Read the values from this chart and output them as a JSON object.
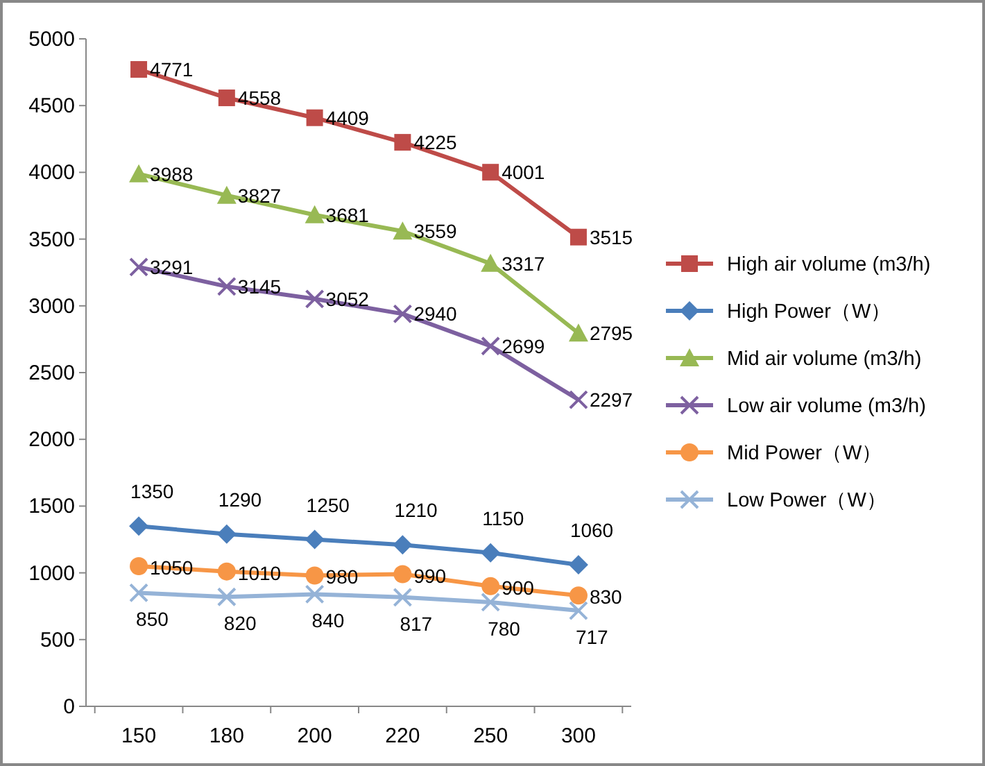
{
  "chart_data": {
    "type": "line",
    "categories": [
      "150",
      "180",
      "200",
      "220",
      "250",
      "300"
    ],
    "ylim": [
      0,
      5000
    ],
    "yticks": [
      0,
      500,
      1000,
      1500,
      2000,
      2500,
      3000,
      3500,
      4000,
      4500,
      5000
    ],
    "data_labels": true,
    "legend": "right",
    "grid": false,
    "series": [
      {
        "name": "High air volume (m3/h)",
        "color": "#be4b48",
        "marker": "square",
        "values": [
          4771,
          4558,
          4409,
          4225,
          4001,
          3515
        ]
      },
      {
        "name": "High Power（W）",
        "color": "#4a7ebb",
        "marker": "diamond",
        "values": [
          1350,
          1290,
          1250,
          1210,
          1150,
          1060
        ]
      },
      {
        "name": "Mid air volume (m3/h)",
        "color": "#98b954",
        "marker": "triangle",
        "values": [
          3988,
          3827,
          3681,
          3559,
          3317,
          2795
        ]
      },
      {
        "name": "Low air volume (m3/h)",
        "color": "#7d60a0",
        "marker": "cross",
        "values": [
          3291,
          3145,
          3052,
          2940,
          2699,
          2297
        ]
      },
      {
        "name": "Mid Power（W）",
        "color": "#f79646",
        "marker": "circle",
        "values": [
          1050,
          1010,
          980,
          990,
          900,
          830
        ]
      },
      {
        "name": "Low Power（W）",
        "color": "#95b3d7",
        "marker": "cross",
        "values": [
          850,
          820,
          840,
          817,
          780,
          717
        ]
      }
    ]
  }
}
